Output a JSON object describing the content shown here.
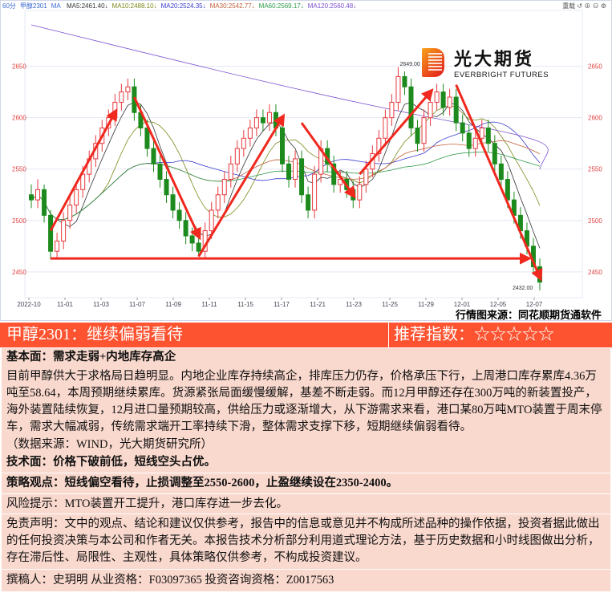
{
  "legend": {
    "period": "60分",
    "symbol": "甲醇2301",
    "ma_label": "MA",
    "items": [
      {
        "text": "MA5:2461.40",
        "color": "#333333"
      },
      {
        "text": "MA10:2488.10",
        "color": "#7a8a1a"
      },
      {
        "text": "MA20:2524.35",
        "color": "#3a3ad0"
      },
      {
        "text": "MA30:2542.77",
        "color": "#c0603a"
      },
      {
        "text": "MA60:2569.17",
        "color": "#2f9a4a"
      },
      {
        "text": "MA120:2560.48",
        "color": "#7a50d0"
      }
    ],
    "arrow_color": "#2a8a2a"
  },
  "toolbar": {
    "reload": "重载",
    "icons": [
      "undo-icon",
      "zoom-in-icon",
      "zoom-out-icon",
      "settings-icon"
    ]
  },
  "logo": {
    "cn": "光大期货",
    "en": "EVERBRIGHT FUTURES"
  },
  "source": "行情图来源：同花顺期货通软件",
  "chart_data": {
    "type": "candlestick",
    "ylim": [
      2428,
      2702
    ],
    "yticks": [
      2450,
      2500,
      2550,
      2600,
      2650
    ],
    "xticks": [
      "2022-10",
      "11-01",
      "11-03",
      "11-07",
      "11-09",
      "11-11",
      "11-15",
      "11-17",
      "11-21",
      "11-23",
      "11-25",
      "11-29",
      "12-01",
      "12-05",
      "12-07"
    ],
    "colors": {
      "up": "#e8383d",
      "down": "#1d8a1d",
      "arrow": "#f0281e",
      "axis_label": "#e04040"
    },
    "annotations": {
      "high_label": "2649.00",
      "low_label": "2432.00"
    },
    "candles": [
      [
        2525,
        2535,
        2512,
        2520
      ],
      [
        2520,
        2540,
        2512,
        2530
      ],
      [
        2530,
        2535,
        2498,
        2505
      ],
      [
        2505,
        2510,
        2462,
        2470
      ],
      [
        2470,
        2488,
        2462,
        2480
      ],
      [
        2480,
        2508,
        2472,
        2500
      ],
      [
        2500,
        2523,
        2492,
        2515
      ],
      [
        2515,
        2538,
        2507,
        2530
      ],
      [
        2530,
        2553,
        2522,
        2545
      ],
      [
        2545,
        2568,
        2537,
        2560
      ],
      [
        2560,
        2583,
        2552,
        2575
      ],
      [
        2575,
        2598,
        2567,
        2590
      ],
      [
        2590,
        2608,
        2582,
        2600
      ],
      [
        2600,
        2623,
        2592,
        2615
      ],
      [
        2615,
        2633,
        2607,
        2625
      ],
      [
        2625,
        2638,
        2617,
        2630
      ],
      [
        2630,
        2638,
        2597,
        2605
      ],
      [
        2605,
        2613,
        2582,
        2590
      ],
      [
        2590,
        2598,
        2562,
        2570
      ],
      [
        2570,
        2578,
        2547,
        2555
      ],
      [
        2555,
        2563,
        2532,
        2540
      ],
      [
        2540,
        2548,
        2517,
        2525
      ],
      [
        2525,
        2533,
        2502,
        2510
      ],
      [
        2510,
        2518,
        2492,
        2500
      ],
      [
        2500,
        2508,
        2477,
        2485
      ],
      [
        2485,
        2493,
        2470,
        2478
      ],
      [
        2478,
        2486,
        2465,
        2470
      ],
      [
        2470,
        2498,
        2462,
        2490
      ],
      [
        2490,
        2518,
        2482,
        2510
      ],
      [
        2510,
        2533,
        2502,
        2525
      ],
      [
        2525,
        2548,
        2517,
        2540
      ],
      [
        2540,
        2563,
        2532,
        2555
      ],
      [
        2555,
        2578,
        2547,
        2570
      ],
      [
        2570,
        2588,
        2562,
        2580
      ],
      [
        2580,
        2598,
        2572,
        2590
      ],
      [
        2590,
        2608,
        2582,
        2600
      ],
      [
        2600,
        2608,
        2587,
        2595
      ],
      [
        2595,
        2613,
        2587,
        2605
      ],
      [
        2605,
        2613,
        2582,
        2590
      ],
      [
        2590,
        2598,
        2547,
        2555
      ],
      [
        2555,
        2563,
        2532,
        2540
      ],
      [
        2540,
        2568,
        2532,
        2560
      ],
      [
        2560,
        2568,
        2517,
        2525
      ],
      [
        2525,
        2533,
        2502,
        2510
      ],
      [
        2510,
        2553,
        2502,
        2545
      ],
      [
        2545,
        2578,
        2537,
        2570
      ],
      [
        2570,
        2578,
        2547,
        2555
      ],
      [
        2555,
        2563,
        2527,
        2535
      ],
      [
        2535,
        2548,
        2527,
        2540
      ],
      [
        2540,
        2548,
        2522,
        2530
      ],
      [
        2530,
        2538,
        2512,
        2520
      ],
      [
        2520,
        2543,
        2512,
        2535
      ],
      [
        2535,
        2558,
        2527,
        2550
      ],
      [
        2550,
        2573,
        2542,
        2565
      ],
      [
        2565,
        2588,
        2557,
        2580
      ],
      [
        2580,
        2608,
        2572,
        2600
      ],
      [
        2600,
        2623,
        2592,
        2615
      ],
      [
        2615,
        2649,
        2607,
        2640
      ],
      [
        2640,
        2645,
        2622,
        2630
      ],
      [
        2630,
        2638,
        2582,
        2590
      ],
      [
        2590,
        2598,
        2567,
        2575
      ],
      [
        2575,
        2608,
        2567,
        2600
      ],
      [
        2600,
        2623,
        2592,
        2615
      ],
      [
        2615,
        2633,
        2607,
        2625
      ],
      [
        2625,
        2633,
        2602,
        2610
      ],
      [
        2610,
        2628,
        2602,
        2620
      ],
      [
        2620,
        2628,
        2587,
        2595
      ],
      [
        2595,
        2603,
        2577,
        2585
      ],
      [
        2585,
        2593,
        2562,
        2570
      ],
      [
        2570,
        2588,
        2562,
        2580
      ],
      [
        2580,
        2598,
        2572,
        2590
      ],
      [
        2590,
        2598,
        2567,
        2575
      ],
      [
        2575,
        2583,
        2547,
        2555
      ],
      [
        2555,
        2563,
        2532,
        2540
      ],
      [
        2540,
        2548,
        2512,
        2520
      ],
      [
        2520,
        2528,
        2497,
        2505
      ],
      [
        2505,
        2513,
        2482,
        2490
      ],
      [
        2490,
        2498,
        2467,
        2475
      ],
      [
        2475,
        2483,
        2447,
        2455
      ],
      [
        2455,
        2463,
        2432,
        2440
      ]
    ],
    "trend_arrows": [
      [
        3,
        2490,
        13,
        2605
      ],
      [
        16,
        2620,
        26,
        2485
      ],
      [
        26,
        2465,
        39,
        2600
      ],
      [
        42,
        2595,
        50,
        2525
      ],
      [
        51,
        2545,
        62,
        2625
      ],
      [
        66,
        2632,
        79,
        2445
      ],
      [
        3,
        2463,
        77,
        2463
      ]
    ]
  },
  "title": {
    "main": "甲醇2301：继续偏弱看待",
    "rating_label": "推荐指数：",
    "rating_stars": "☆☆☆☆☆"
  },
  "fundamental": {
    "heading": "基本面：需求走弱+内地库存高企",
    "body": "目前甲醇供大于求格局日趋明显。内地企业库存持续高企，排库压力仍存，价格承压下行，上周港口库存累库4.36万吨至58.64，本周预期继续累库。货源紧张局面缓慢缓解，基差不断走弱。而12月甲醇还存在300万吨的新装置投产，海外装置陆续恢复，12月进口量预期较高，供给压力或逐渐增大，从下游需求来看，港口某80万吨MTO装置于周末停车，需求大幅减弱，传统需求端开工率持续下滑，整体需求支撑下移，短期继续偏弱看待。",
    "data_source": "（数据来源：WIND，光大期货研究所）"
  },
  "technical": "技术面：价格下破前低，短线空头占优。",
  "strategy": "策略观点：短线偏空看待，止损调整至2550-2600，止盈继续设在2350-2400。",
  "risk": "风险提示：MTO装置开工提升，港口库存进一步去化。",
  "disclaimer": "免责声明：文中的观点、结论和建议仅供参考，报告中的信息或意见并不构成所述品种的操作依据，投资者据此做出的任何投资决策与本公司和作者无关。本报告技术分析部分利用道式理论方法，基于历史数据和小时线图做出分析，存在滞后性、局限性、主观性，具体策略仅供参考，不构成投资建议。",
  "author": "撰稿人：史玥明  从业资格：F03097365  投资咨询资格：Z0017563"
}
